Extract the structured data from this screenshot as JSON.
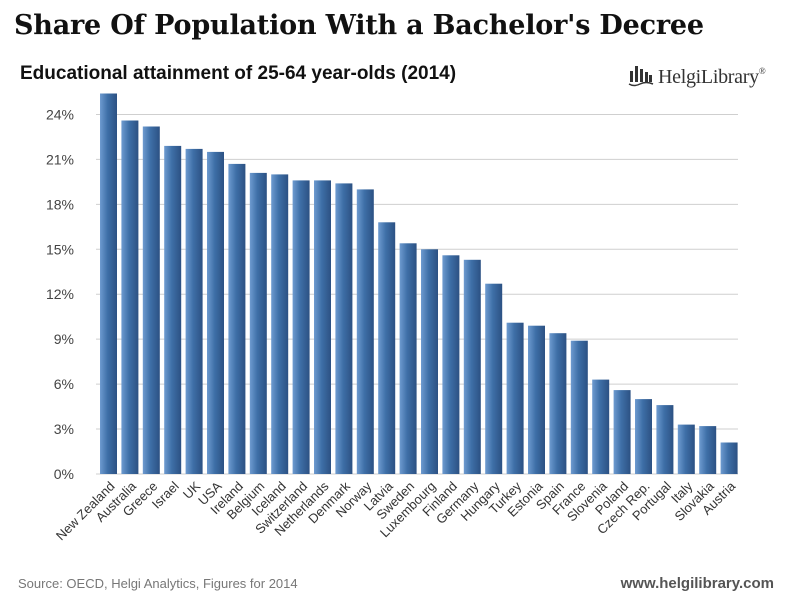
{
  "header": {
    "title": "Share Of Population With a Bachelor's Decree",
    "subtitle": "Educational attainment of 25-64 year-olds (2014)"
  },
  "logo": {
    "text": "HelgiLibrary",
    "mark": "®",
    "icon": "bar-columns-logo-icon"
  },
  "footer": {
    "source": "Source: OECD, Helgi Analytics, Figures for 2014",
    "website": "www.helgilibrary.com"
  },
  "colors": {
    "bar": "#3e6fa7",
    "bar_light": "#6e9bd0",
    "bar_dark": "#2c5183",
    "grid": "#cfcfcf",
    "background": "#ffffff"
  },
  "chart_data": {
    "type": "bar",
    "title": "Share Of Population With a Bachelor's Decree",
    "subtitle": "Educational attainment of 25-64 year-olds (2014)",
    "xlabel": "",
    "ylabel": "",
    "ylim": [
      0,
      25.5
    ],
    "yticks": [
      0,
      3,
      6,
      9,
      12,
      15,
      18,
      21,
      24
    ],
    "ytick_labels": [
      "0%",
      "3%",
      "6%",
      "9%",
      "12%",
      "15%",
      "18%",
      "21%",
      "24%"
    ],
    "grid": true,
    "legend": "none",
    "categories": [
      "New Zealand",
      "Australia",
      "Greece",
      "Israel",
      "UK",
      "USA",
      "Ireland",
      "Belgium",
      "Iceland",
      "Switzerland",
      "Netherlands",
      "Denmark",
      "Norway",
      "Latvia",
      "Sweden",
      "Luxembourg",
      "Finland",
      "Germany",
      "Hungary",
      "Turkey",
      "Estonia",
      "Spain",
      "France",
      "Slovenia",
      "Poland",
      "Czech Rep.",
      "Portugal",
      "Italy",
      "Slovakia",
      "Austria"
    ],
    "values": [
      25.4,
      23.6,
      23.2,
      21.9,
      21.7,
      21.5,
      20.7,
      20.1,
      20.0,
      19.6,
      19.6,
      19.4,
      19.0,
      16.8,
      15.4,
      15.0,
      14.6,
      14.3,
      12.7,
      10.1,
      9.9,
      9.4,
      8.9,
      6.3,
      5.6,
      5.0,
      4.6,
      3.3,
      3.2,
      2.1
    ]
  }
}
